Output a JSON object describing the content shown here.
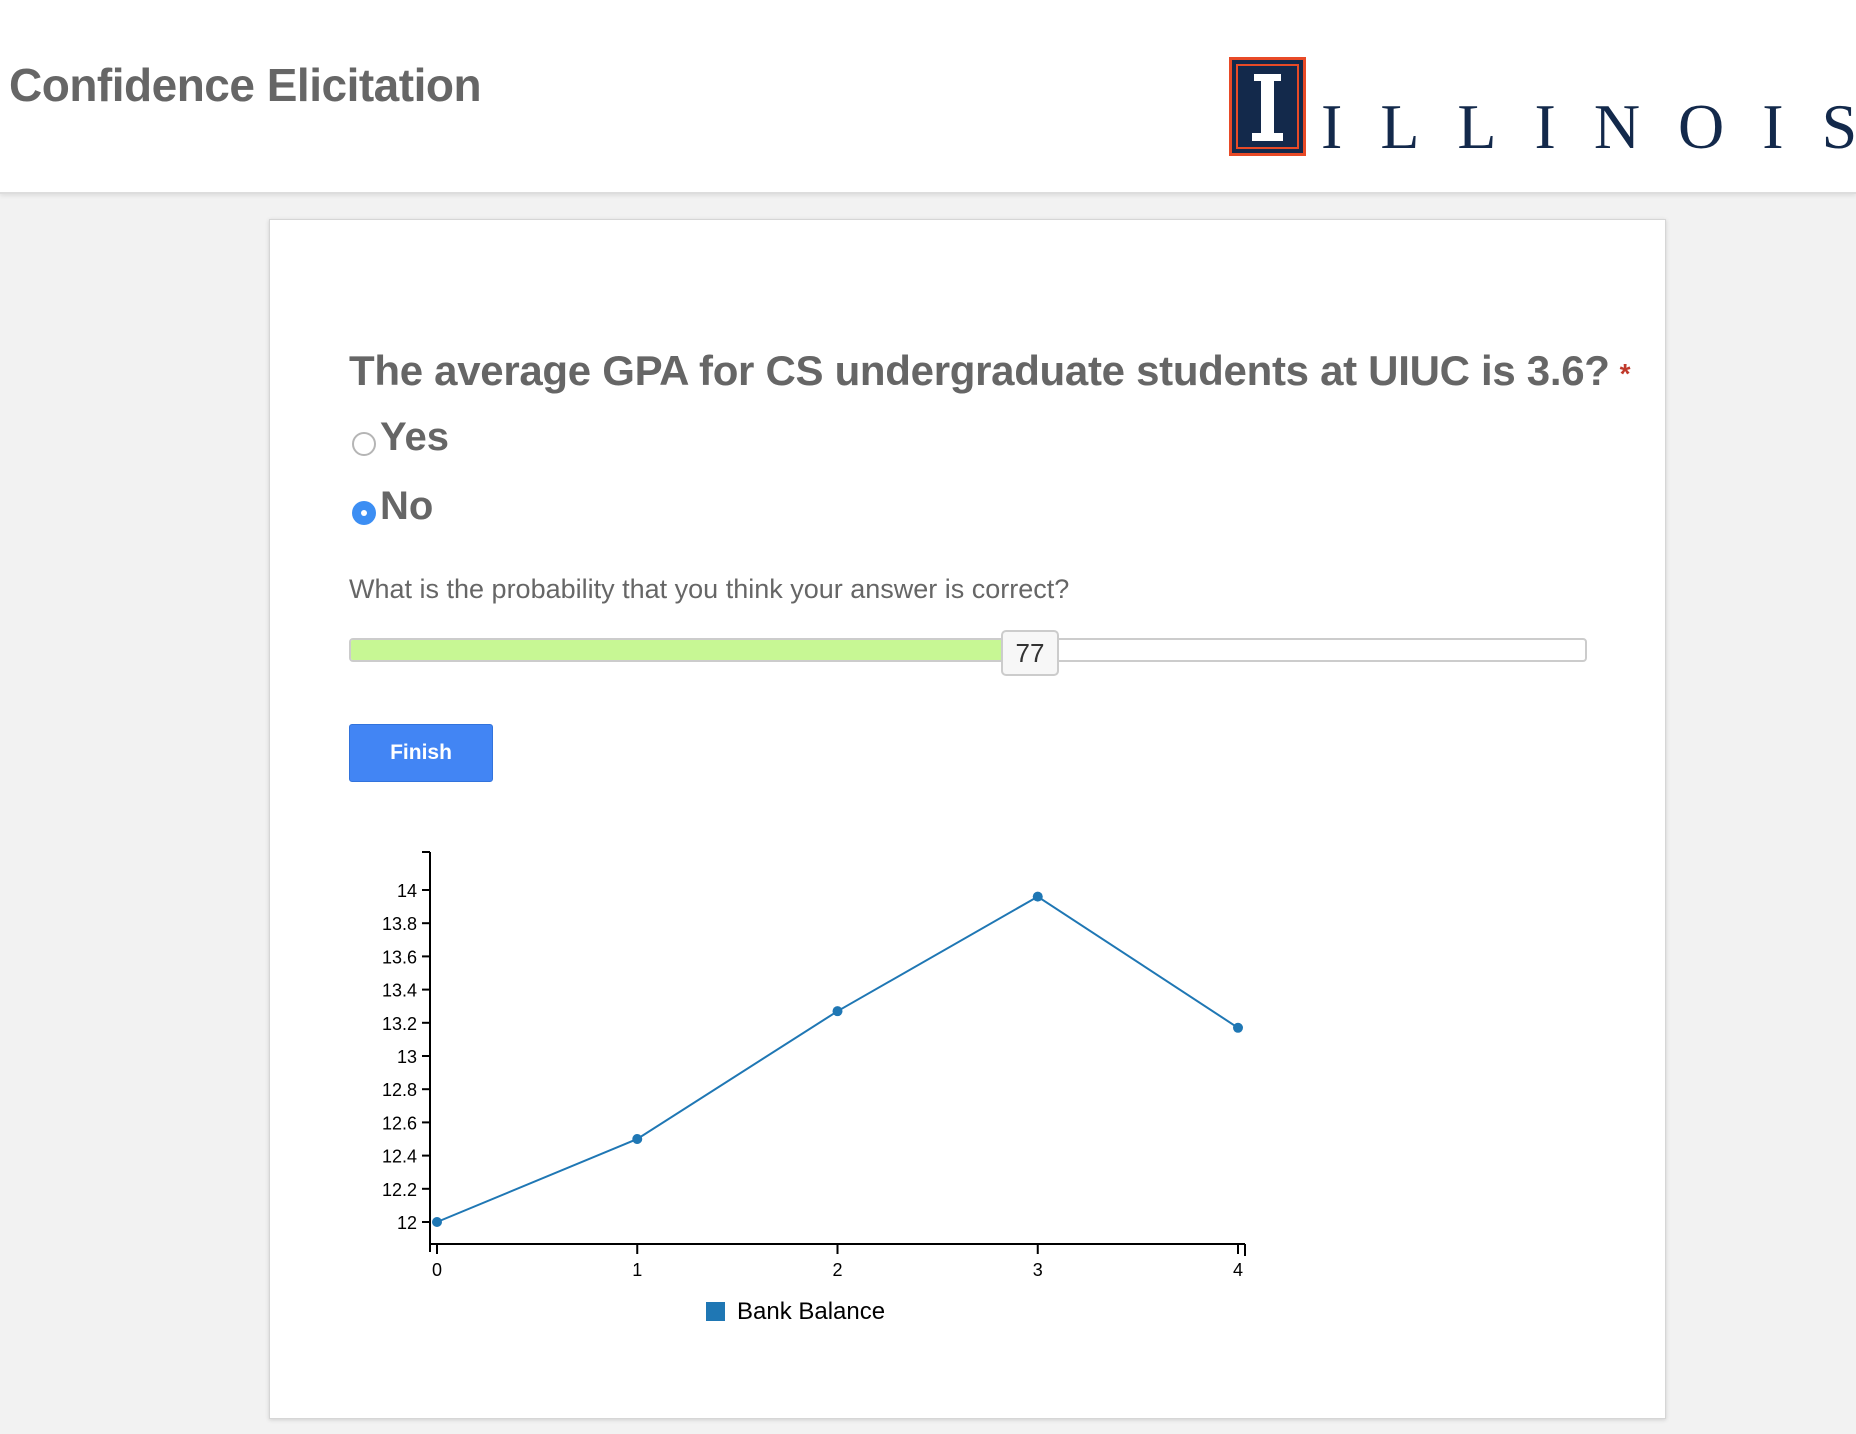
{
  "header": {
    "app_title": "Confidence Elicitation",
    "logo_text": "ILLINOIS",
    "logo_colors": {
      "navy": "#13294b",
      "orange": "#e84a27"
    }
  },
  "question": {
    "text": "The average GPA for CS undergraduate students at UIUC is 3.6?",
    "required_marker": "*",
    "options": [
      {
        "label": "Yes",
        "selected": false
      },
      {
        "label": "No",
        "selected": true
      }
    ]
  },
  "probability": {
    "prompt": "What is the probability that you think your answer is correct?",
    "value": "77",
    "fill_fraction": 0.55,
    "fill_color": "#c7f794"
  },
  "finish_button": {
    "label": "Finish",
    "color": "#4285f4"
  },
  "chart_data": {
    "type": "line",
    "x": [
      0,
      1,
      2,
      3,
      4
    ],
    "x_ticks": [
      "0",
      "1",
      "2",
      "3",
      "4"
    ],
    "y_ticks": [
      "12",
      "12.2",
      "12.4",
      "12.6",
      "12.8",
      "13",
      "13.2",
      "13.4",
      "13.6",
      "13.8",
      "14"
    ],
    "ylim": [
      11.8,
      14.15
    ],
    "series": [
      {
        "name": "Bank Balance",
        "values": [
          12.0,
          12.5,
          13.27,
          13.96,
          13.17
        ],
        "color": "#1f77b4"
      }
    ],
    "legend": "bottom-center",
    "grid": false
  }
}
